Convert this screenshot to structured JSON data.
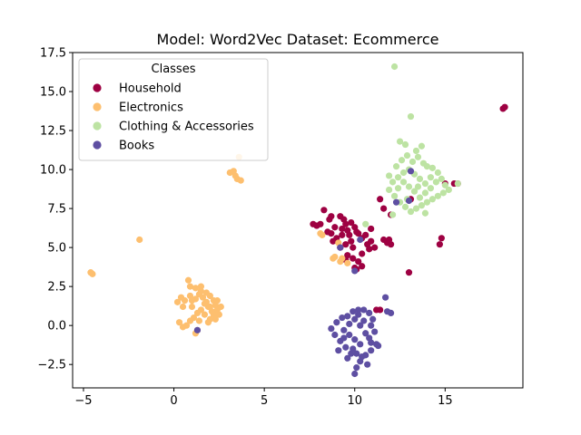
{
  "chart_data": {
    "type": "scatter",
    "title": "Model: Word2Vec       Dataset: Ecommerce",
    "xlabel": "",
    "ylabel": "",
    "xlim": [
      -5.6,
      19.3
    ],
    "ylim": [
      -4.0,
      17.5
    ],
    "x_ticks": [
      -5,
      0,
      5,
      10,
      15
    ],
    "x_tick_labels": [
      "−5",
      "0",
      "5",
      "10",
      "15"
    ],
    "y_ticks": [
      -2.5,
      0.0,
      2.5,
      5.0,
      7.5,
      10.0,
      12.5,
      15.0,
      17.5
    ],
    "y_tick_labels": [
      "−2.5",
      "0.0",
      "2.5",
      "5.0",
      "7.5",
      "10.0",
      "12.5",
      "15.0",
      "17.5"
    ],
    "grid": false,
    "legend": {
      "title": "Classes",
      "placement": "top-left"
    },
    "series": [
      {
        "name": "Household",
        "color": "#9e0142",
        "points": [
          [
            18.2,
            13.9
          ],
          [
            18.3,
            14.0
          ],
          [
            13.0,
            3.4
          ],
          [
            14.8,
            5.6
          ],
          [
            14.7,
            5.2
          ],
          [
            15.7,
            9.1
          ],
          [
            15.5,
            9.1
          ],
          [
            7.7,
            6.5
          ],
          [
            7.9,
            6.4
          ],
          [
            8.1,
            6.5
          ],
          [
            8.3,
            7.4
          ],
          [
            8.6,
            6.8
          ],
          [
            8.5,
            6.0
          ],
          [
            8.7,
            5.9
          ],
          [
            8.9,
            6.3
          ],
          [
            8.7,
            7.0
          ],
          [
            9.0,
            5.6
          ],
          [
            9.2,
            7.0
          ],
          [
            9.4,
            6.8
          ],
          [
            9.3,
            6.2
          ],
          [
            9.5,
            6.5
          ],
          [
            9.8,
            6.6
          ],
          [
            10.0,
            6.3
          ],
          [
            10.2,
            5.9
          ],
          [
            10.4,
            5.6
          ],
          [
            10.1,
            6.0
          ],
          [
            9.7,
            5.8
          ],
          [
            9.5,
            5.2
          ],
          [
            9.2,
            5.0
          ],
          [
            9.9,
            5.0
          ],
          [
            10.4,
            4.6
          ],
          [
            10.7,
            5.2
          ],
          [
            10.6,
            5.8
          ],
          [
            10.9,
            5.4
          ],
          [
            11.1,
            5.0
          ],
          [
            11.6,
            5.5
          ],
          [
            11.8,
            5.3
          ],
          [
            12.0,
            5.2
          ],
          [
            11.9,
            5.5
          ],
          [
            9.9,
            4.3
          ],
          [
            10.0,
            3.7
          ],
          [
            10.1,
            3.6
          ],
          [
            10.4,
            3.8
          ],
          [
            10.2,
            4.1
          ],
          [
            9.5,
            4.2
          ],
          [
            9.6,
            4.5
          ],
          [
            11.4,
            8.1
          ],
          [
            11.6,
            7.5
          ],
          [
            12.0,
            7.1
          ],
          [
            13.1,
            8.1
          ],
          [
            15.0,
            9.1
          ],
          [
            11.2,
            1.0
          ],
          [
            11.4,
            1.0
          ],
          [
            10.8,
            4.9
          ],
          [
            10.9,
            6.2
          ],
          [
            9.8,
            5.4
          ],
          [
            9.3,
            5.8
          ],
          [
            8.8,
            5.4
          ],
          [
            9.6,
            6.1
          ]
        ]
      },
      {
        "name": "Electronics",
        "color": "#fdbf6f",
        "points": [
          [
            -4.6,
            3.4
          ],
          [
            -4.5,
            3.3
          ],
          [
            -1.9,
            5.5
          ],
          [
            3.6,
            10.8
          ],
          [
            3.1,
            9.8
          ],
          [
            3.3,
            9.9
          ],
          [
            3.4,
            9.6
          ],
          [
            3.5,
            9.4
          ],
          [
            3.7,
            9.3
          ],
          [
            0.8,
            2.9
          ],
          [
            0.9,
            2.5
          ],
          [
            1.2,
            2.4
          ],
          [
            1.5,
            2.2
          ],
          [
            1.8,
            2.1
          ],
          [
            2.0,
            1.9
          ],
          [
            2.2,
            1.6
          ],
          [
            2.3,
            1.3
          ],
          [
            2.4,
            1.0
          ],
          [
            2.5,
            0.7
          ],
          [
            2.3,
            0.4
          ],
          [
            2.1,
            0.9
          ],
          [
            1.9,
            1.2
          ],
          [
            1.7,
            1.4
          ],
          [
            1.5,
            1.0
          ],
          [
            1.3,
            0.8
          ],
          [
            1.1,
            0.5
          ],
          [
            0.9,
            0.3
          ],
          [
            0.7,
            0.0
          ],
          [
            0.5,
            -0.1
          ],
          [
            0.3,
            0.2
          ],
          [
            0.2,
            1.5
          ],
          [
            0.4,
            1.8
          ],
          [
            0.6,
            1.6
          ],
          [
            0.9,
            1.9
          ],
          [
            1.2,
            1.7
          ],
          [
            1.4,
            2.0
          ],
          [
            1.6,
            1.8
          ],
          [
            1.8,
            1.5
          ],
          [
            2.0,
            1.2
          ],
          [
            2.2,
            0.7
          ],
          [
            1.4,
            0.3
          ],
          [
            1.2,
            -0.5
          ],
          [
            1.3,
            -0.3
          ],
          [
            1.0,
            1.2
          ],
          [
            1.7,
            0.7
          ],
          [
            2.0,
            0.4
          ],
          [
            1.5,
            2.5
          ],
          [
            1.0,
            1.6
          ],
          [
            8.1,
            5.9
          ],
          [
            8.2,
            5.8
          ],
          [
            9.1,
            5.3
          ],
          [
            8.9,
            4.4
          ],
          [
            9.3,
            4.3
          ],
          [
            9.6,
            4.0
          ],
          [
            9.2,
            4.1
          ],
          [
            8.8,
            4.3
          ],
          [
            2.6,
            1.2
          ],
          [
            2.4,
            1.6
          ],
          [
            0.5,
            1.2
          ],
          [
            1.9,
            0.2
          ]
        ]
      },
      {
        "name": "Clothing & Accessories",
        "color": "#bde3a3",
        "points": [
          [
            12.2,
            16.6
          ],
          [
            13.1,
            13.4
          ],
          [
            12.5,
            11.8
          ],
          [
            12.8,
            11.6
          ],
          [
            13.7,
            11.5
          ],
          [
            13.4,
            11.2
          ],
          [
            12.9,
            10.9
          ],
          [
            12.6,
            10.6
          ],
          [
            13.2,
            10.5
          ],
          [
            13.5,
            10.8
          ],
          [
            13.8,
            10.4
          ],
          [
            14.0,
            10.2
          ],
          [
            14.3,
            10.1
          ],
          [
            14.6,
            9.8
          ],
          [
            14.8,
            9.4
          ],
          [
            15.0,
            9.0
          ],
          [
            15.2,
            8.7
          ],
          [
            14.9,
            8.5
          ],
          [
            14.6,
            8.3
          ],
          [
            14.3,
            8.1
          ],
          [
            14.0,
            7.9
          ],
          [
            13.7,
            7.7
          ],
          [
            13.4,
            7.5
          ],
          [
            13.1,
            7.3
          ],
          [
            12.8,
            7.6
          ],
          [
            12.5,
            7.9
          ],
          [
            12.2,
            8.3
          ],
          [
            11.9,
            8.7
          ],
          [
            12.1,
            9.2
          ],
          [
            12.4,
            9.5
          ],
          [
            12.7,
            9.8
          ],
          [
            13.0,
            10.0
          ],
          [
            13.3,
            9.7
          ],
          [
            13.6,
            9.4
          ],
          [
            13.9,
            9.1
          ],
          [
            14.2,
            8.8
          ],
          [
            13.9,
            8.5
          ],
          [
            13.6,
            8.2
          ],
          [
            13.3,
            8.6
          ],
          [
            13.0,
            8.9
          ],
          [
            12.7,
            9.2
          ],
          [
            12.4,
            8.8
          ],
          [
            12.1,
            7.1
          ],
          [
            13.9,
            7.2
          ],
          [
            14.2,
            9.5
          ],
          [
            15.7,
            9.1
          ],
          [
            11.9,
            9.6
          ],
          [
            12.3,
            10.2
          ],
          [
            10.6,
            6.5
          ],
          [
            13.5,
            8.9
          ],
          [
            14.5,
            9.2
          ],
          [
            12.9,
            8.1
          ]
        ]
      },
      {
        "name": "Books",
        "color": "#5e4fa2",
        "points": [
          [
            13.1,
            9.9
          ],
          [
            13.0,
            8.0
          ],
          [
            12.3,
            7.9
          ],
          [
            10.3,
            5.5
          ],
          [
            10.0,
            3.5
          ],
          [
            9.2,
            5.0
          ],
          [
            11.7,
            1.8
          ],
          [
            1.3,
            -0.3
          ],
          [
            11.8,
            0.9
          ],
          [
            12.0,
            0.8
          ],
          [
            9.3,
            0.5
          ],
          [
            9.6,
            0.6
          ],
          [
            9.9,
            0.9
          ],
          [
            10.2,
            1.0
          ],
          [
            10.5,
            1.0
          ],
          [
            10.8,
            0.8
          ],
          [
            11.0,
            0.4
          ],
          [
            10.9,
            0.0
          ],
          [
            11.1,
            -0.4
          ],
          [
            10.8,
            -0.8
          ],
          [
            11.2,
            -1.2
          ],
          [
            10.9,
            -1.6
          ],
          [
            10.6,
            -1.9
          ],
          [
            10.3,
            -2.3
          ],
          [
            10.1,
            -2.7
          ],
          [
            10.0,
            -3.1
          ],
          [
            9.8,
            -1.8
          ],
          [
            9.5,
            -1.4
          ],
          [
            9.2,
            -1.0
          ],
          [
            8.9,
            -0.6
          ],
          [
            8.7,
            -0.2
          ],
          [
            9.0,
            0.2
          ],
          [
            9.4,
            -0.3
          ],
          [
            9.7,
            -0.6
          ],
          [
            10.0,
            -0.9
          ],
          [
            10.3,
            -1.2
          ],
          [
            10.6,
            -0.5
          ],
          [
            10.3,
            0.0
          ],
          [
            10.0,
            0.4
          ],
          [
            9.7,
            0.1
          ],
          [
            9.4,
            -0.8
          ],
          [
            9.9,
            -1.5
          ],
          [
            10.4,
            -2.0
          ],
          [
            10.7,
            -2.5
          ],
          [
            11.3,
            -1.3
          ],
          [
            9.1,
            -1.6
          ],
          [
            10.5,
            0.3
          ],
          [
            9.6,
            -2.1
          ],
          [
            10.2,
            0.7
          ],
          [
            10.9,
            -1.1
          ],
          [
            10.1,
            -1.8
          ]
        ]
      }
    ]
  }
}
